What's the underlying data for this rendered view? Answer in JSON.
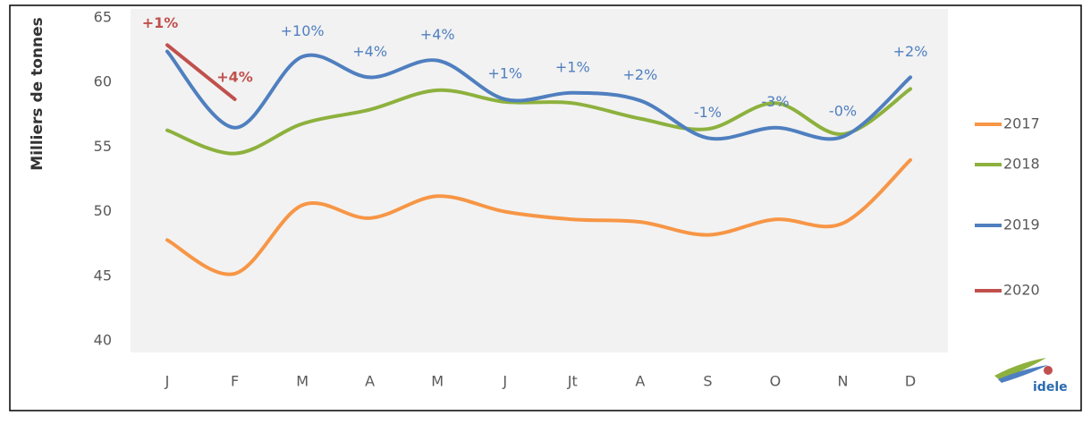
{
  "chart_data": {
    "type": "line",
    "y_label": "Milliers de tonnes",
    "categories": [
      "J",
      "F",
      "M",
      "A",
      "M",
      "J",
      "Jt",
      "A",
      "S",
      "O",
      "N",
      "D"
    ],
    "ylim": [
      40,
      65
    ],
    "yticks": [
      40,
      45,
      50,
      55,
      60,
      65
    ],
    "series": [
      {
        "name": "2017",
        "color": "#f79646",
        "values": [
          47.8,
          45.2,
          50.5,
          49.5,
          51.2,
          50.0,
          49.4,
          49.2,
          48.2,
          49.4,
          49.1,
          54.0
        ]
      },
      {
        "name": "2018",
        "color": "#8db13d",
        "values": [
          56.3,
          54.5,
          56.8,
          57.9,
          59.4,
          58.5,
          58.4,
          57.2,
          56.4,
          58.4,
          56.0,
          59.5
        ]
      },
      {
        "name": "2019",
        "color": "#4f7fbf",
        "values": [
          62.4,
          56.5,
          62.0,
          60.4,
          61.7,
          58.7,
          59.2,
          58.6,
          55.7,
          56.5,
          55.8,
          60.4
        ],
        "labels": [
          null,
          null,
          "+10%",
          "+4%",
          "+4%",
          "+1%",
          "+1%",
          "+2%",
          "-1%",
          "-3%",
          "-0%",
          "+2%"
        ]
      },
      {
        "name": "2020",
        "color": "#c0504d",
        "values": [
          62.9,
          58.7,
          null,
          null,
          null,
          null,
          null,
          null,
          null,
          null,
          null,
          null
        ],
        "labels": [
          "+1%",
          "+4%",
          null,
          null,
          null,
          null,
          null,
          null,
          null,
          null,
          null,
          null
        ]
      }
    ],
    "logo": "idele"
  }
}
